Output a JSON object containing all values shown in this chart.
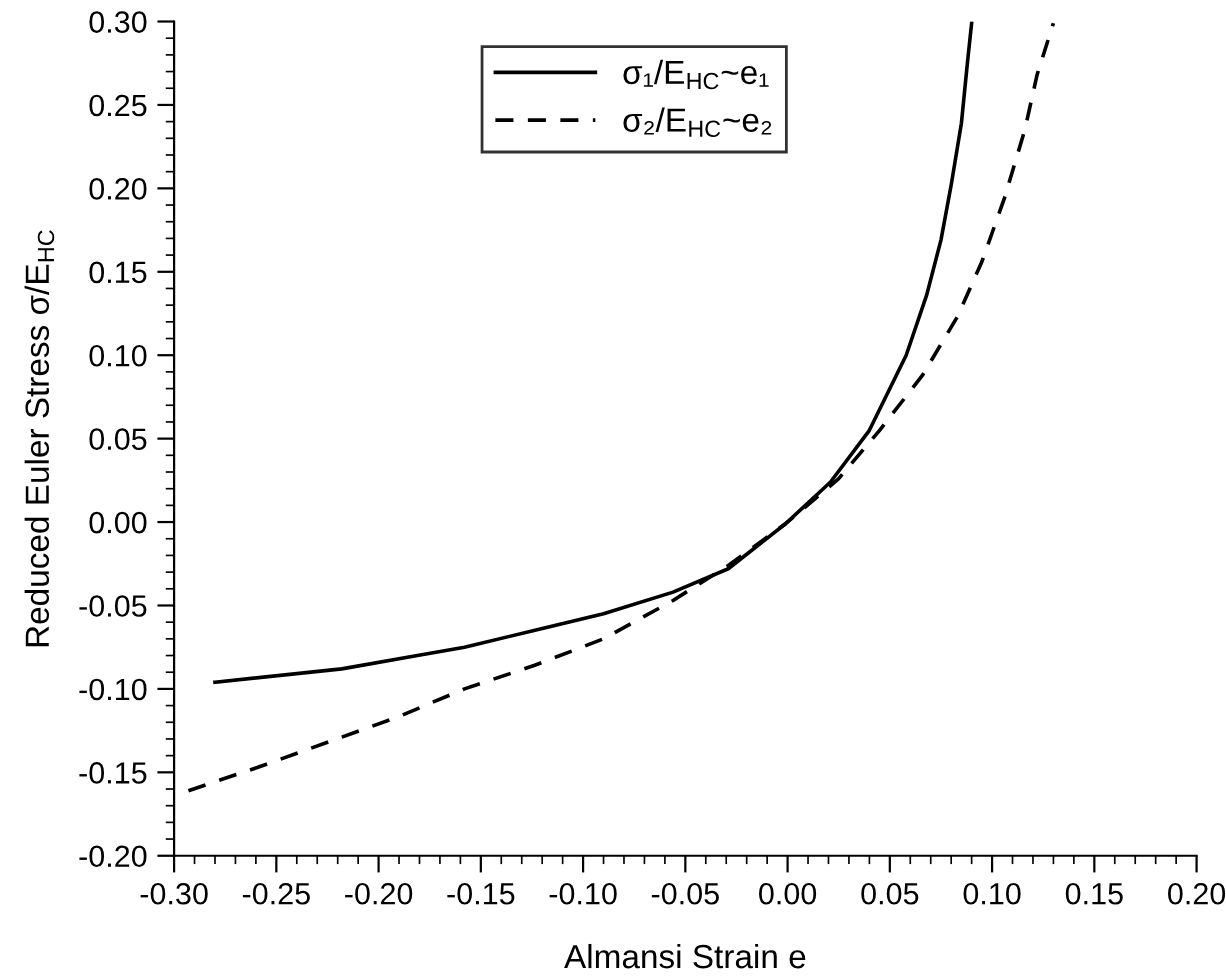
{
  "chart_data": {
    "type": "line",
    "xlabel": "Almansi Strain e",
    "ylabel": "Reduced Euler Stress σ/E$_{HC}$",
    "xlim": [
      -0.3,
      0.2
    ],
    "ylim": [
      -0.2,
      0.3
    ],
    "xticks": [
      {
        "value": -0.3,
        "label": "-0.30"
      },
      {
        "value": -0.25,
        "label": "-0.25"
      },
      {
        "value": -0.2,
        "label": "-0.20"
      },
      {
        "value": -0.15,
        "label": "-0.15"
      },
      {
        "value": -0.1,
        "label": "-0.10"
      },
      {
        "value": -0.05,
        "label": "-0.05"
      },
      {
        "value": 0,
        "label": "0.00"
      },
      {
        "value": 0.05,
        "label": "0.05"
      },
      {
        "value": 0.1,
        "label": "0.10"
      },
      {
        "value": 0.15,
        "label": "0.15"
      },
      {
        "value": 0.2,
        "label": "0.20"
      }
    ],
    "yticks": [
      {
        "value": -0.2,
        "label": "-0.20"
      },
      {
        "value": -0.15,
        "label": "-0.15"
      },
      {
        "value": -0.1,
        "label": "-0.10"
      },
      {
        "value": -0.05,
        "label": "-0.05"
      },
      {
        "value": 0,
        "label": "0.00"
      },
      {
        "value": 0.05,
        "label": "0.05"
      },
      {
        "value": 0.1,
        "label": "0.10"
      },
      {
        "value": 0.15,
        "label": "0.15"
      },
      {
        "value": 0.2,
        "label": "0.20"
      },
      {
        "value": 0.25,
        "label": "0.25"
      },
      {
        "value": 0.3,
        "label": "0.30"
      }
    ],
    "legend": "top",
    "grid": false,
    "series": [
      {
        "name": "σ₁/E$_{HC}$~e₁",
        "color": "#000000",
        "line_style": "solid",
        "x": [
          -0.28,
          -0.218,
          -0.181,
          -0.158,
          -0.124,
          -0.09,
          -0.056,
          -0.029,
          -0.001,
          0.021,
          0.04,
          0.058,
          0.068,
          0.075,
          0.08,
          0.085,
          0.088,
          0.09
        ],
        "values": [
          -0.096,
          -0.088,
          -0.08,
          -0.075,
          -0.065,
          -0.055,
          -0.042,
          -0.028,
          -0.001,
          0.024,
          0.055,
          0.1,
          0.136,
          0.169,
          0.202,
          0.239,
          0.276,
          0.299
        ]
      },
      {
        "name": "σ₂/E$_{HC}$~e₂",
        "color": "#000000",
        "line_style": "dashed",
        "x": [
          -0.293,
          -0.259,
          -0.225,
          -0.191,
          -0.158,
          -0.124,
          -0.09,
          -0.056,
          -0.029,
          -0.001,
          0.025,
          0.045,
          0.066,
          0.083,
          0.095,
          0.106,
          0.116,
          0.122,
          0.13
        ],
        "values": [
          -0.161,
          -0.147,
          -0.132,
          -0.117,
          -0.1,
          -0.086,
          -0.07,
          -0.047,
          -0.026,
          -0.001,
          0.026,
          0.055,
          0.088,
          0.123,
          0.156,
          0.194,
          0.235,
          0.268,
          0.299
        ]
      }
    ]
  }
}
